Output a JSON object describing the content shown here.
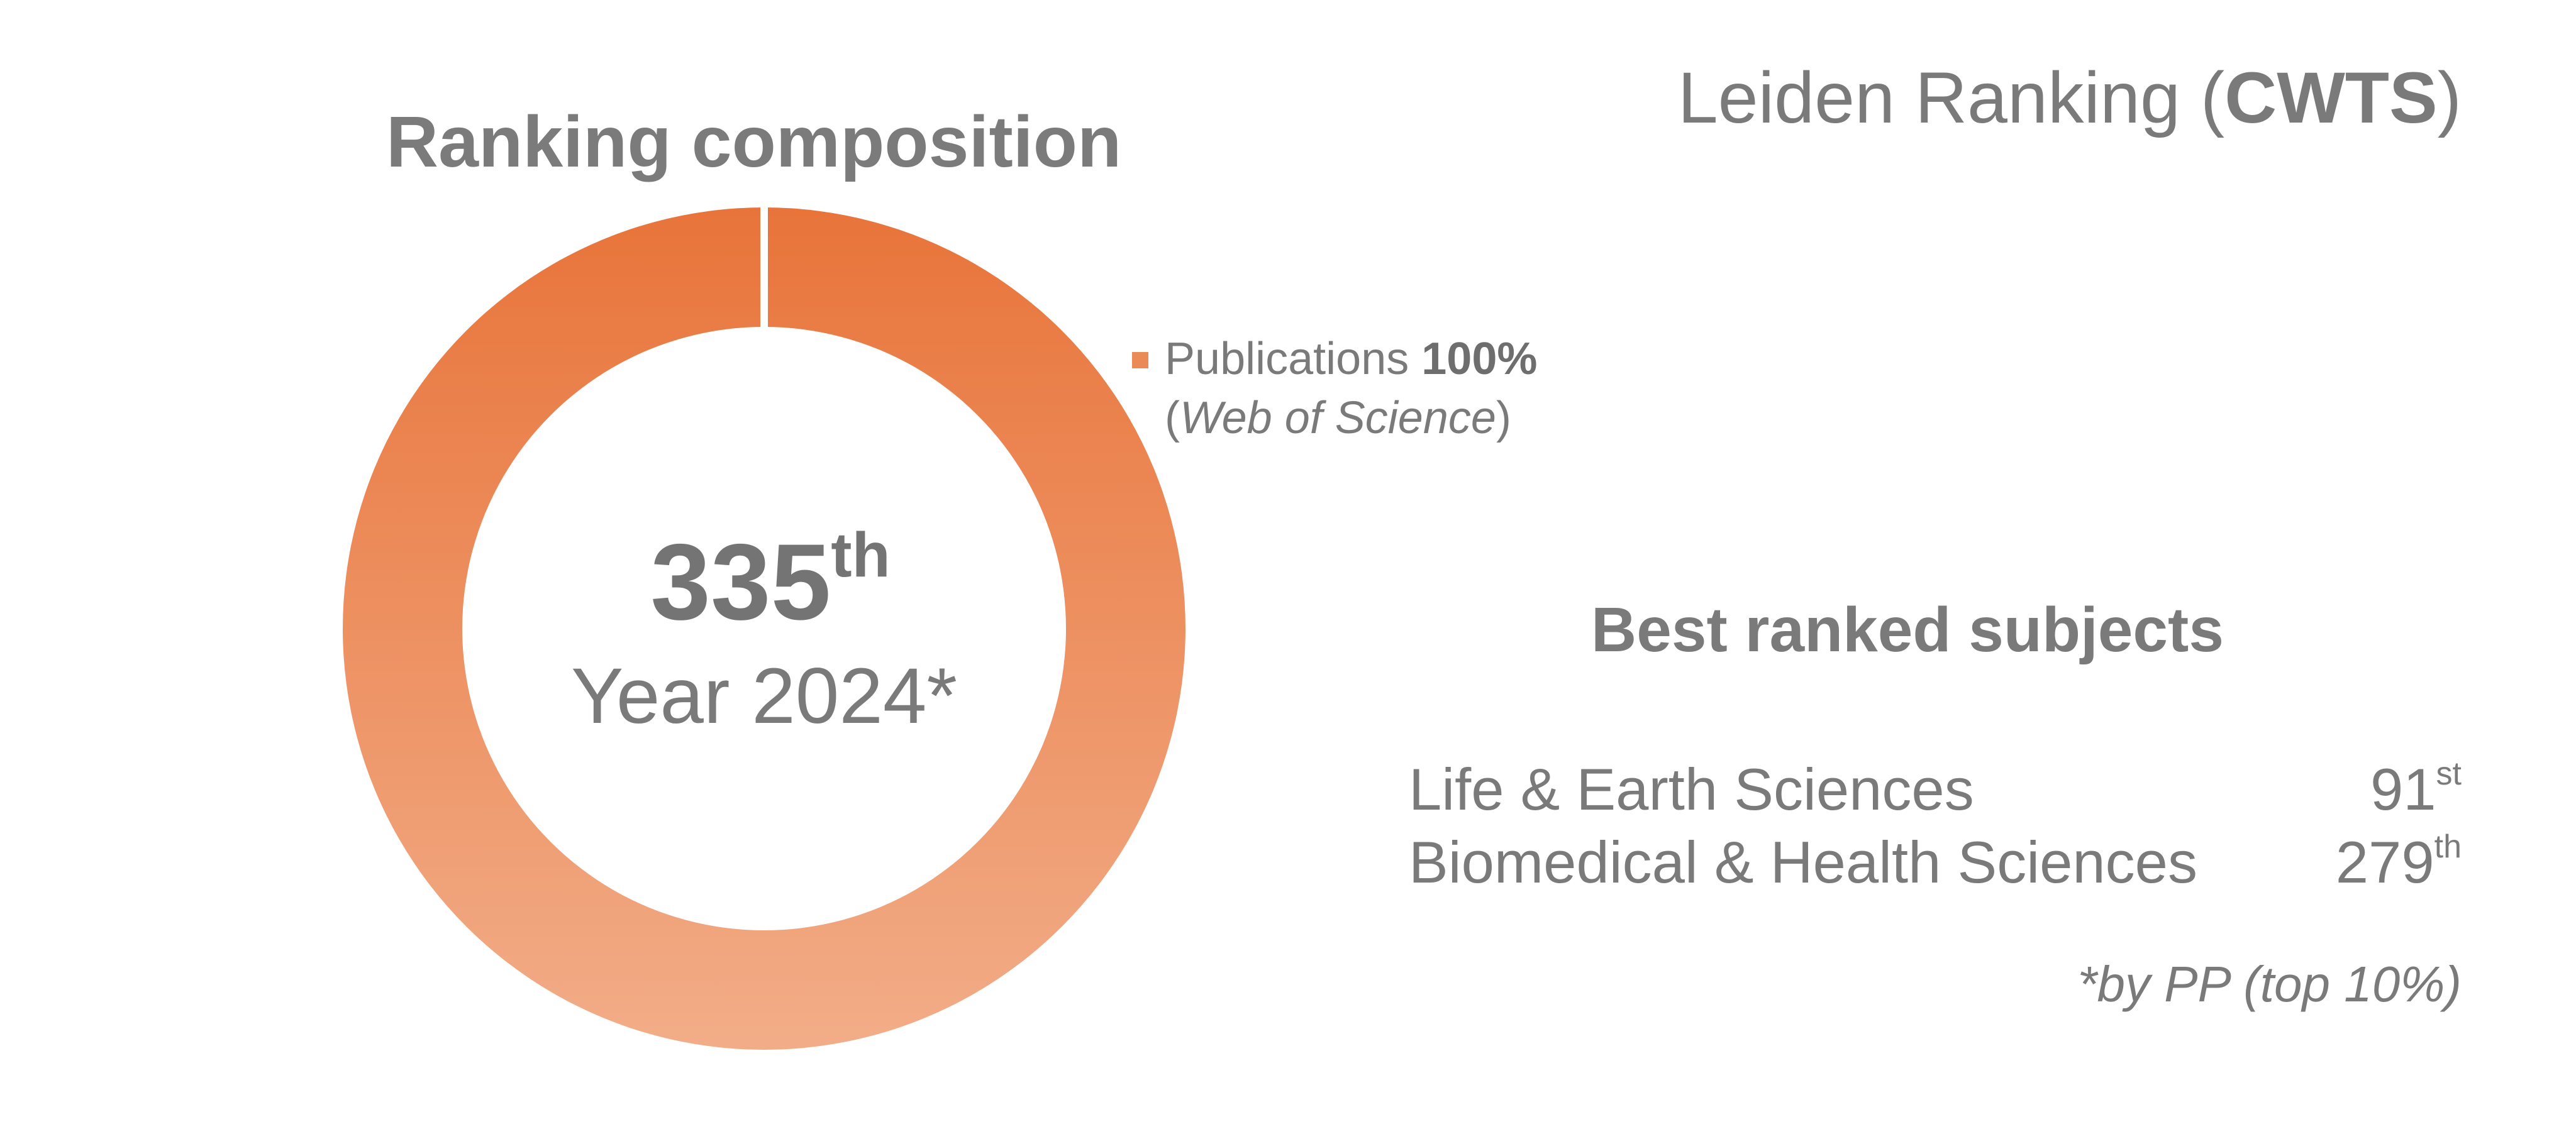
{
  "colors": {
    "donut_top": "#e8743a",
    "donut_bottom": "#f2ad88",
    "legend_marker": "#ea8a57",
    "text": "#7a7a7a",
    "separator": "#ffffff"
  },
  "chart_data": {
    "type": "pie",
    "title": "Ranking composition",
    "series": [
      {
        "name": "Publications",
        "value": 100,
        "value_label": "100%",
        "source": "Web of Science"
      }
    ],
    "center_label": {
      "rank_number": "335",
      "rank_suffix": "th",
      "year_text": "Year 2024*"
    },
    "legend": {
      "placement": "right",
      "name": "Publications",
      "percent": "100%",
      "source_open": "(",
      "source": "Web of Science",
      "source_close": ")"
    }
  },
  "ranking": {
    "name_prefix": "Leiden Ranking (",
    "name_bold": "CWTS",
    "name_suffix": ")"
  },
  "subjects": {
    "title": "Best ranked subjects",
    "items": [
      {
        "name": "Life & Earth Sciences",
        "rank": "91",
        "suffix": "st"
      },
      {
        "name": "Biomedical & Health Sciences",
        "rank": "279",
        "suffix": "th"
      }
    ],
    "footnote": "*by PP (top 10%)"
  }
}
